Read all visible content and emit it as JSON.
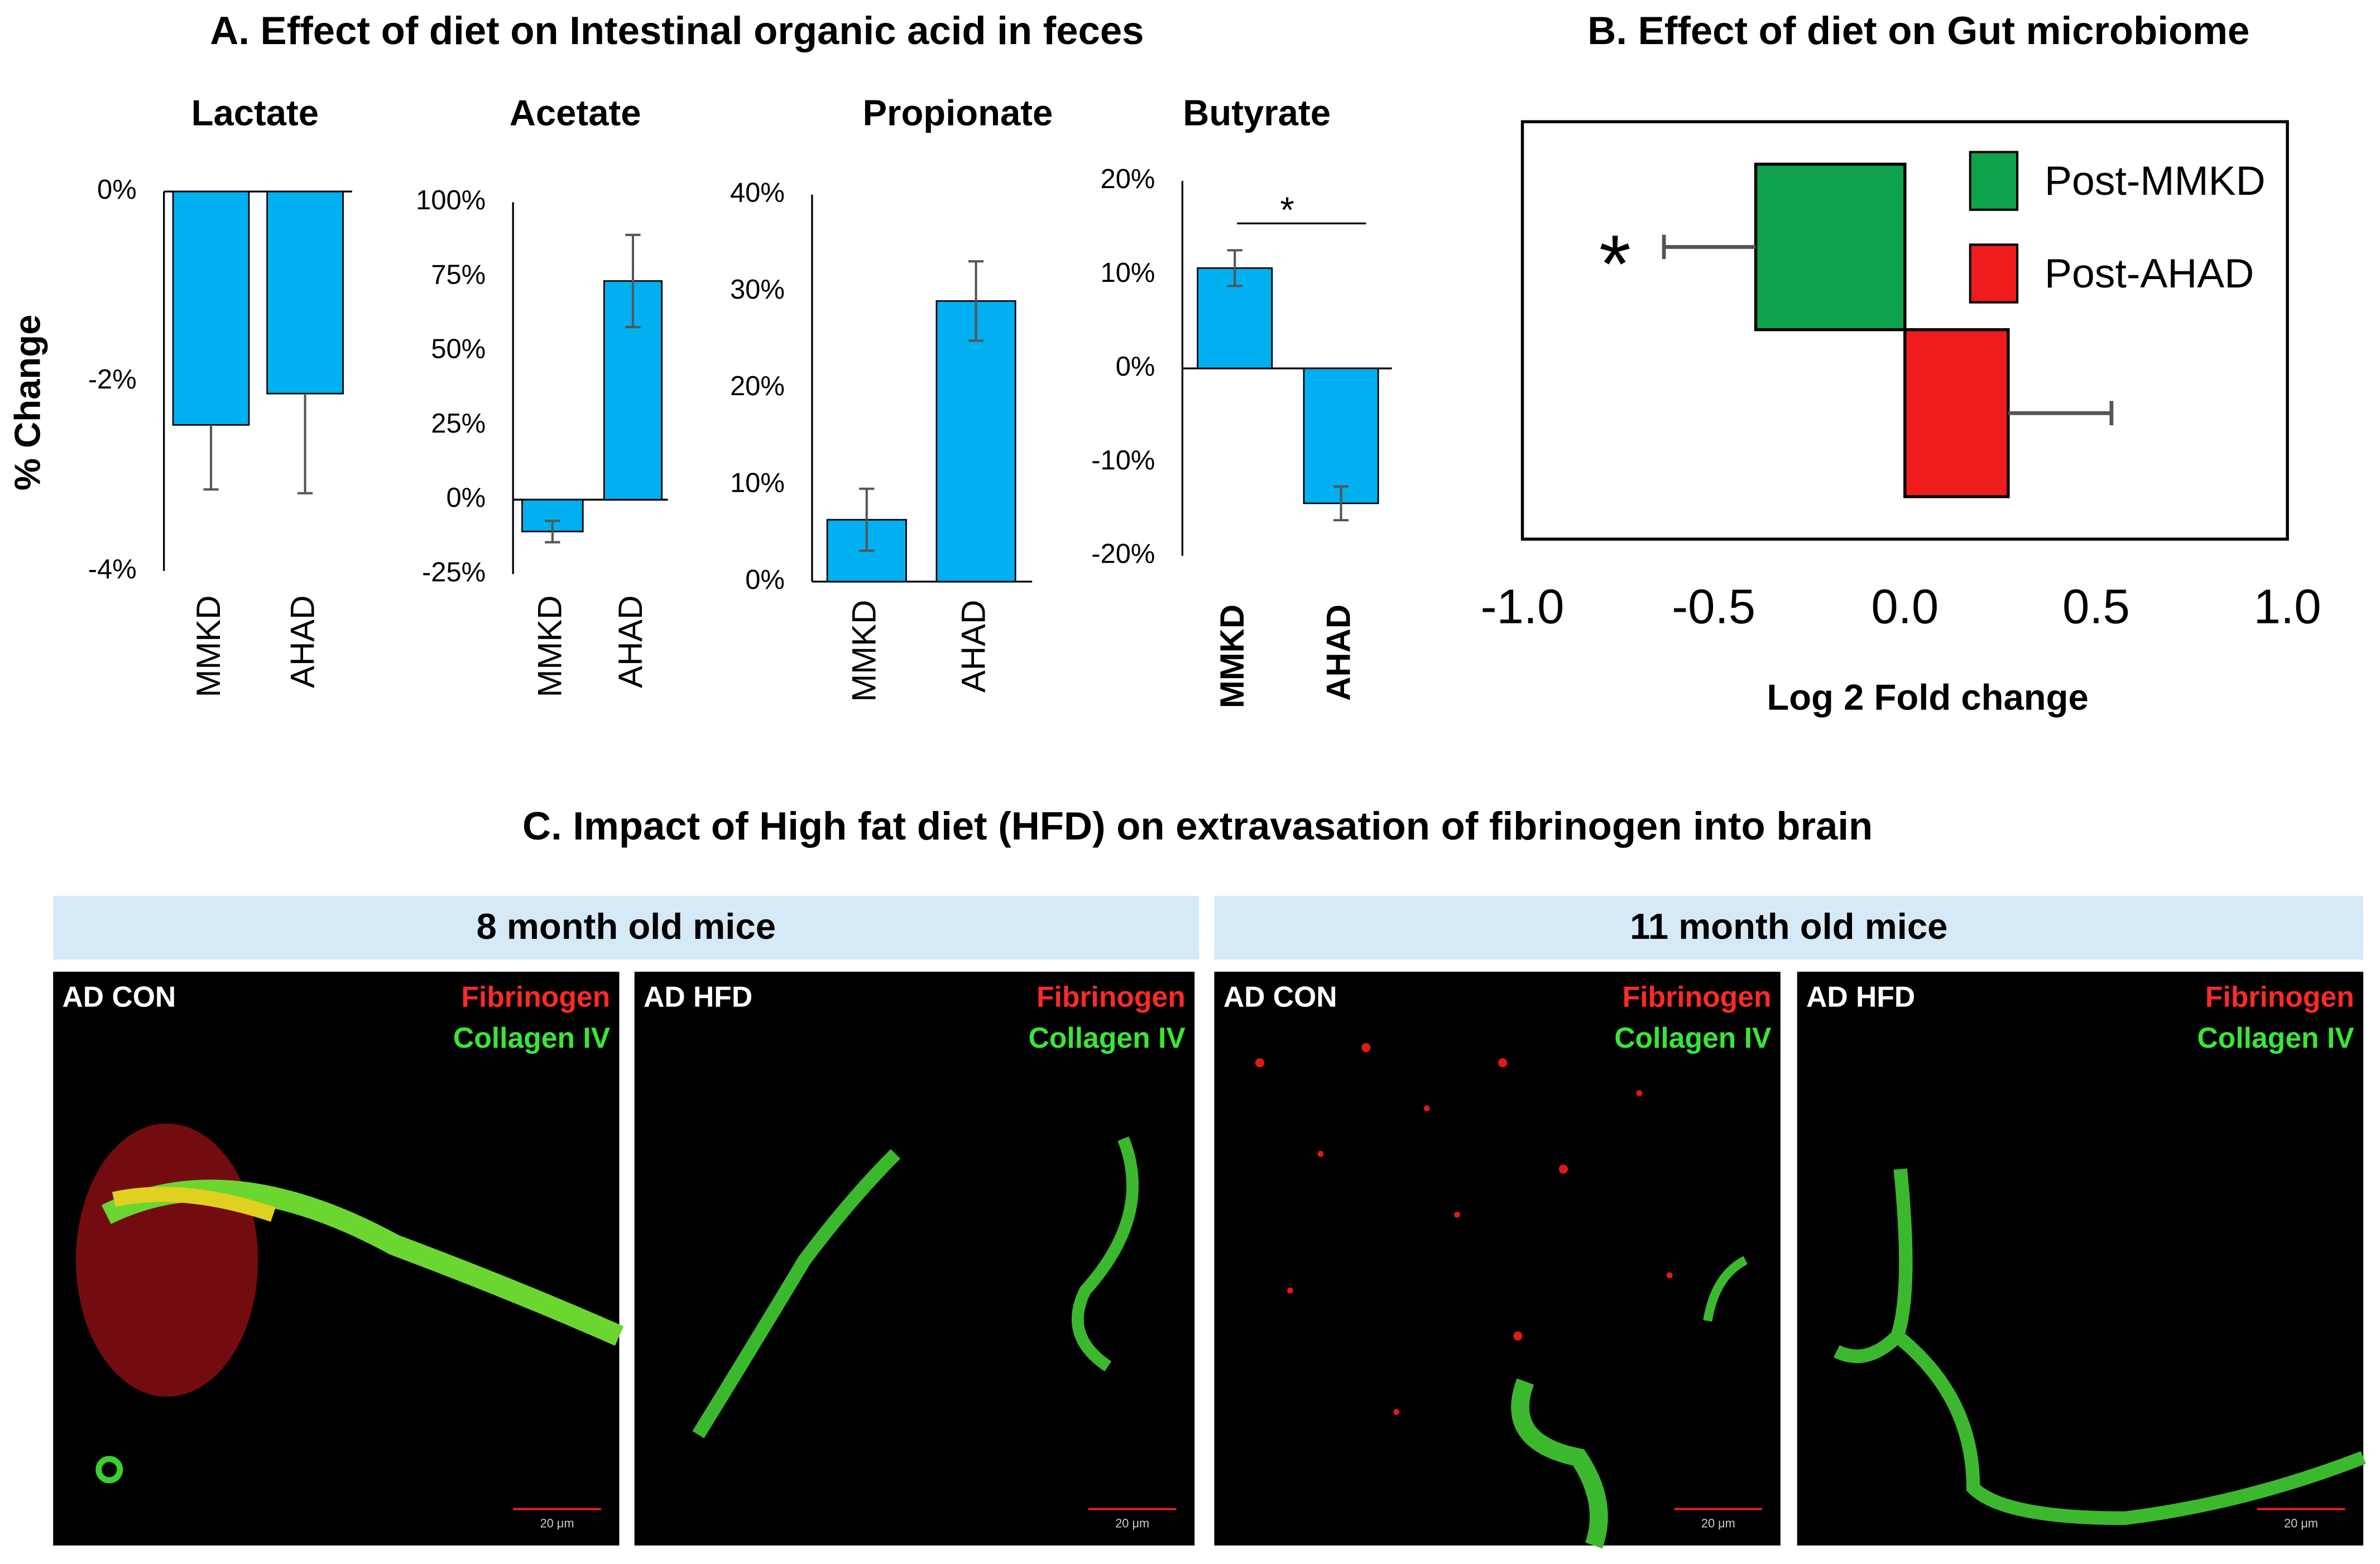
{
  "panel_a": {
    "title": "A. Effect of diet on Intestinal organic acid in feces"
  },
  "chart_data": [
    {
      "type": "bar",
      "title": "Lactate",
      "ylabel": "% Change",
      "categories": [
        "MMKD",
        "AHAD"
      ],
      "values": [
        -2.46,
        -2.13
      ],
      "errors": [
        0.68,
        1.05
      ],
      "color": "#00b0f0",
      "bold_categories": false,
      "ylim": [
        -4,
        0
      ],
      "yticks": [
        {
          "value": 0,
          "label": "0%"
        },
        {
          "value": -2,
          "label": "-2%"
        },
        {
          "value": -4,
          "label": "-4%"
        }
      ]
    },
    {
      "type": "bar",
      "title": "Acetate",
      "categories": [
        "MMKD",
        "AHAD"
      ],
      "values": [
        -10.7,
        73.5
      ],
      "errors": [
        3.6,
        15.5
      ],
      "color": "#00b0f0",
      "bold_categories": false,
      "ylim": [
        -25,
        100
      ],
      "yticks": [
        {
          "value": 100,
          "label": "100%"
        },
        {
          "value": 75,
          "label": "75%"
        },
        {
          "value": 50,
          "label": "50%"
        },
        {
          "value": 25,
          "label": "25%"
        },
        {
          "value": 0,
          "label": "0%"
        },
        {
          "value": -25,
          "label": "-25%"
        }
      ]
    },
    {
      "type": "bar",
      "title": "Propionate",
      "categories": [
        "MMKD",
        "AHAD"
      ],
      "values": [
        6.4,
        29
      ],
      "errors": [
        3.2,
        4.1
      ],
      "color": "#00b0f0",
      "bold_categories": false,
      "ylim": [
        0,
        40
      ],
      "yticks": [
        {
          "value": 40,
          "label": "40%"
        },
        {
          "value": 30,
          "label": "30%"
        },
        {
          "value": 20,
          "label": "20%"
        },
        {
          "value": 10,
          "label": "10%"
        },
        {
          "value": 0,
          "label": "0%"
        }
      ]
    },
    {
      "type": "bar",
      "title": "Butyrate",
      "categories": [
        "MMKD",
        "AHAD"
      ],
      "values": [
        10.7,
        -14.4
      ],
      "errors": [
        1.9,
        1.8
      ],
      "color": "#00b0f0",
      "bold_categories": true,
      "annotation": "*",
      "ylim": [
        -20,
        20
      ],
      "yticks": [
        {
          "value": 20,
          "label": "20%"
        },
        {
          "value": 10,
          "label": "10%"
        },
        {
          "value": 0,
          "label": "0%"
        },
        {
          "value": -10,
          "label": "-10%"
        },
        {
          "value": -20,
          "label": "-20%"
        }
      ]
    },
    {
      "type": "hbar",
      "title": "B. Effect of diet on Gut microbiome",
      "xlabel": "Log 2 Fold change",
      "annotation": "*",
      "legend": "upper right",
      "series": [
        {
          "name": "Post-MMKD",
          "color": "#0ea34b",
          "value": -0.39,
          "error": 0.24
        },
        {
          "name": "Post-AHAD",
          "color": "#ee1c1c",
          "value": 0.27,
          "error": 0.27
        }
      ],
      "xlim": [
        -1,
        1
      ],
      "xticks": [
        {
          "value": -1,
          "label": "-1.0"
        },
        -0.5,
        {
          "value": 0,
          "label": "0.0"
        },
        0.5,
        {
          "value": 1,
          "label": "1.0"
        }
      ]
    }
  ],
  "panel_c": {
    "title": "C. Impact of High fat diet (HFD) on extravasation of fibrinogen into brain",
    "groups": [
      {
        "label": "8 month old mice",
        "images": [
          {
            "label": "AD CON",
            "stains": [
              "Fibrinogen",
              "Collagen IV"
            ],
            "scale": "20 μm"
          },
          {
            "label": "AD HFD",
            "stains": [
              "Fibrinogen",
              "Collagen IV"
            ],
            "scale": "20 μm"
          }
        ]
      },
      {
        "label": "11 month old mice",
        "images": [
          {
            "label": "AD CON",
            "stains": [
              "Fibrinogen",
              "Collagen IV"
            ],
            "scale": "20 μm"
          },
          {
            "label": "AD HFD",
            "stains": [
              "Fibrinogen",
              "Collagen IV"
            ],
            "scale": "20 μm"
          }
        ]
      }
    ]
  }
}
